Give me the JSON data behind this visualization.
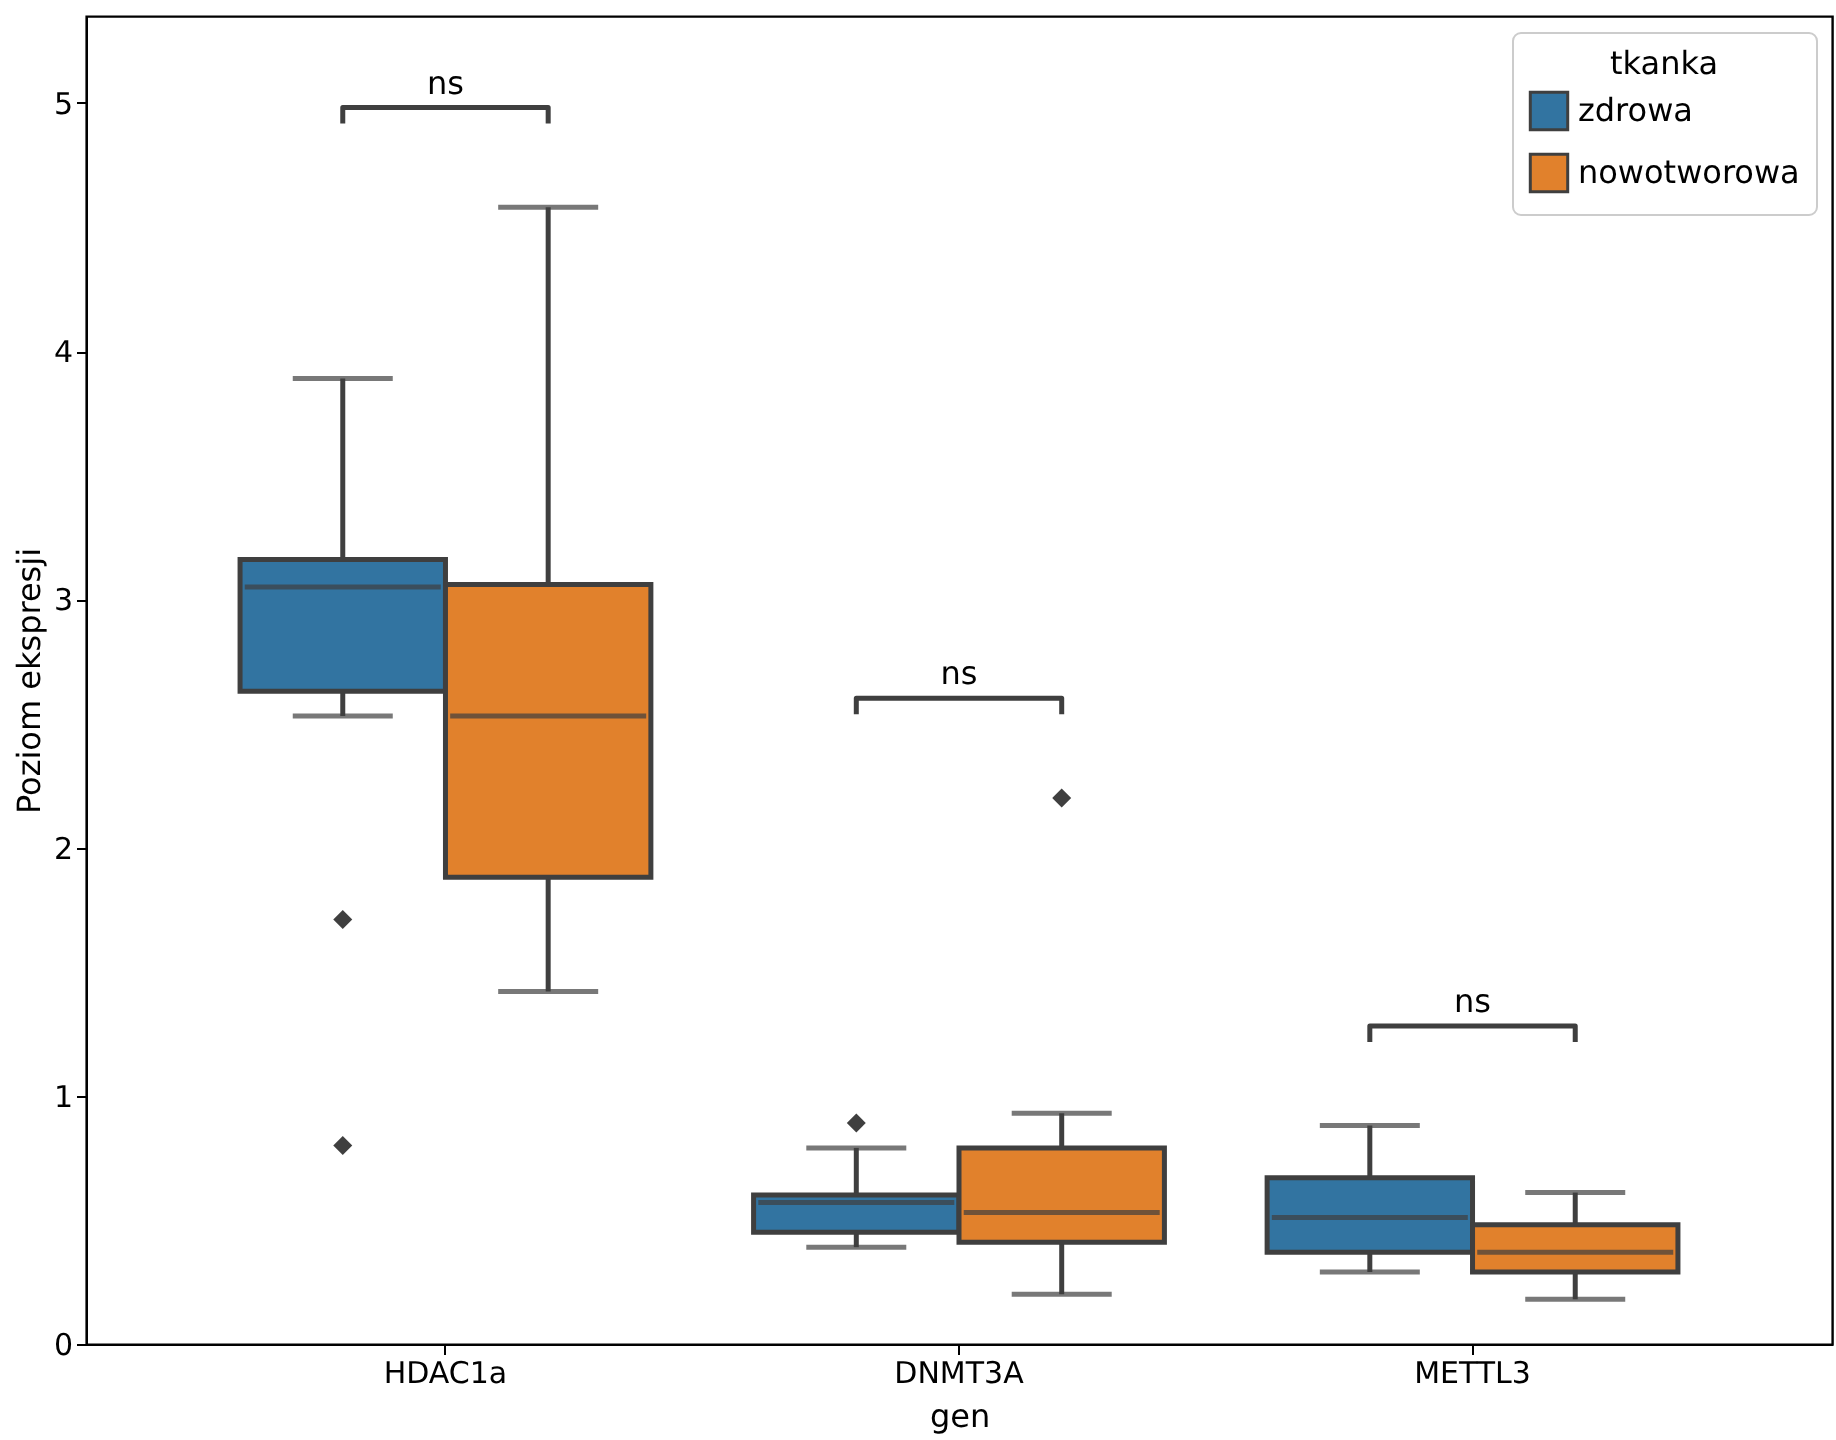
{
  "chart_data": {
    "type": "box",
    "xlabel": "gen",
    "ylabel": "Poziom ekspresji",
    "legend_title": "tkanka",
    "legend": "top right",
    "grid": false,
    "categories": [
      "HDAC1a",
      "DNMT3A",
      "METTL3"
    ],
    "ylim": [
      0,
      5.35
    ],
    "yticks": [
      0,
      1,
      2,
      3,
      4,
      5
    ],
    "series": [
      {
        "name": "zdrowa",
        "color": "#3274a1",
        "boxes": [
          {
            "low": 2.53,
            "q1": 2.63,
            "median": 3.05,
            "q3": 3.16,
            "high": 3.89,
            "outliers": [
              1.71,
              0.8
            ]
          },
          {
            "low": 0.39,
            "q1": 0.45,
            "median": 0.57,
            "q3": 0.6,
            "high": 0.79,
            "outliers": [
              0.89
            ]
          },
          {
            "low": 0.29,
            "q1": 0.37,
            "median": 0.51,
            "q3": 0.67,
            "high": 0.88
          }
        ]
      },
      {
        "name": "nowotworowa",
        "color": "#e1812c",
        "boxes": [
          {
            "low": 1.42,
            "q1": 1.88,
            "median": 2.53,
            "q3": 3.06,
            "high": 4.58
          },
          {
            "low": 0.2,
            "q1": 0.41,
            "median": 0.53,
            "q3": 0.79,
            "high": 0.93,
            "outliers": [
              2.2
            ]
          },
          {
            "low": 0.18,
            "q1": 0.29,
            "median": 0.37,
            "q3": 0.48,
            "high": 0.61
          }
        ]
      }
    ],
    "annotations": [
      "ns",
      "ns",
      "ns"
    ]
  }
}
